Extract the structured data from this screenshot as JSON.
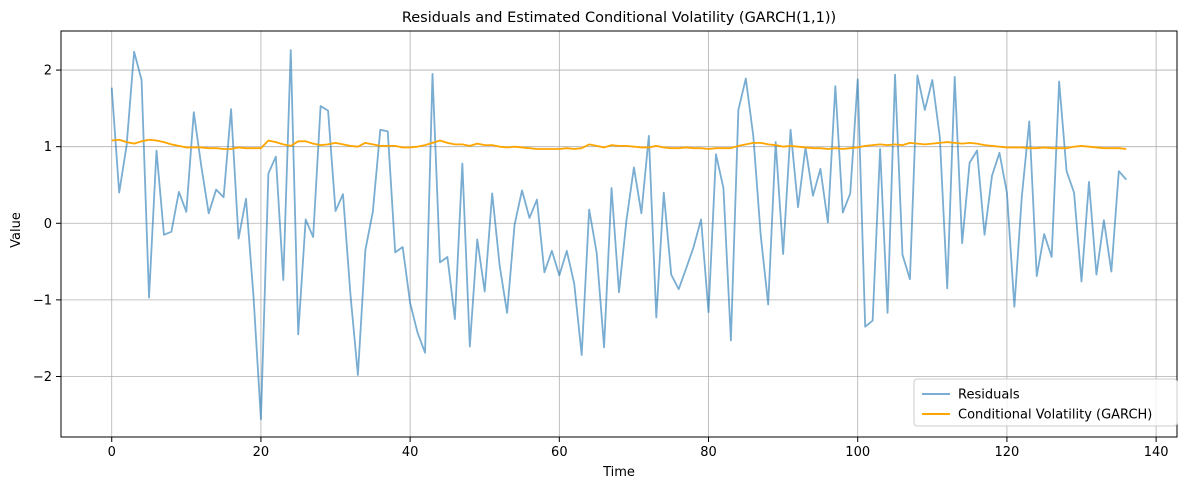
{
  "chart_data": {
    "type": "line",
    "title": "Residuals and Estimated Conditional Volatility (GARCH(1,1))",
    "xlabel": "Time",
    "ylabel": "Value",
    "xlim": [
      -6.8,
      142.8
    ],
    "ylim": [
      -2.79,
      2.51
    ],
    "xticks": [
      0,
      20,
      40,
      60,
      80,
      100,
      120,
      140
    ],
    "yticks": [
      -2,
      -1,
      0,
      1,
      2
    ],
    "xtick_labels": [
      "0",
      "20",
      "40",
      "60",
      "80",
      "100",
      "120",
      "140"
    ],
    "ytick_labels": [
      "−2",
      "−1",
      "0",
      "1",
      "2"
    ],
    "grid": true,
    "legend_position": "lower-right",
    "series": [
      {
        "name": "Residuals",
        "color": "#1f77b4",
        "opacity": 0.6,
        "x": [
          0,
          1,
          2,
          3,
          4,
          5,
          6,
          7,
          8,
          9,
          10,
          11,
          12,
          13,
          14,
          15,
          16,
          17,
          18,
          19,
          20,
          21,
          22,
          23,
          24,
          25,
          26,
          27,
          28,
          29,
          30,
          31,
          32,
          33,
          34,
          35,
          36,
          37,
          38,
          39,
          40,
          41,
          42,
          43,
          44,
          45,
          46,
          47,
          48,
          49,
          50,
          51,
          52,
          53,
          54,
          55,
          56,
          57,
          58,
          59,
          60,
          61,
          62,
          63,
          64,
          65,
          66,
          67,
          68,
          69,
          70,
          71,
          72,
          73,
          74,
          75,
          76,
          77,
          78,
          79,
          80,
          81,
          82,
          83,
          84,
          85,
          86,
          87,
          88,
          89,
          90,
          91,
          92,
          93,
          94,
          95,
          96,
          97,
          98,
          99,
          100,
          101,
          102,
          103,
          104,
          105,
          106,
          107,
          108,
          109,
          110,
          111,
          112,
          113,
          114,
          115,
          116,
          117,
          118,
          119,
          120,
          121,
          122,
          123,
          124,
          125,
          126,
          127,
          128,
          129,
          130,
          131,
          132,
          133,
          134,
          135,
          136
        ],
        "values": [
          1.77,
          0.4,
          1.02,
          2.24,
          1.87,
          -0.97,
          0.95,
          -0.15,
          -0.11,
          0.41,
          0.15,
          1.45,
          0.75,
          0.13,
          0.44,
          0.34,
          1.49,
          -0.2,
          0.32,
          -0.95,
          -2.56,
          0.65,
          0.87,
          -0.74,
          2.26,
          -1.45,
          0.05,
          -0.18,
          1.53,
          1.47,
          0.16,
          0.38,
          -0.93,
          -1.98,
          -0.35,
          0.15,
          1.22,
          1.2,
          -0.38,
          -0.31,
          -1.04,
          -1.43,
          -1.69,
          1.95,
          -0.51,
          -0.44,
          -1.25,
          0.78,
          -1.61,
          -0.21,
          -0.89,
          0.39,
          -0.55,
          -1.17,
          -0.02,
          0.43,
          0.07,
          0.31,
          -0.64,
          -0.36,
          -0.68,
          -0.36,
          -0.79,
          -1.72,
          0.18,
          -0.38,
          -1.62,
          0.46,
          -0.9,
          0.04,
          0.73,
          0.13,
          1.14,
          -1.23,
          0.4,
          -0.67,
          -0.86,
          -0.59,
          -0.31,
          0.05,
          -1.16,
          0.9,
          0.46,
          -1.53,
          1.48,
          1.89,
          1.14,
          -0.16,
          -1.06,
          1.06,
          -0.4,
          1.22,
          0.21,
          0.99,
          0.36,
          0.71,
          0.01,
          1.79,
          0.14,
          0.39,
          1.88,
          -1.35,
          -1.27,
          0.97,
          -1.17,
          1.94,
          -0.41,
          -0.73,
          1.93,
          1.48,
          1.87,
          1.13,
          -0.85,
          1.91,
          -0.26,
          0.79,
          0.95,
          -0.15,
          0.62,
          0.92,
          0.4,
          -1.09,
          0.35,
          1.33,
          -0.69,
          -0.14,
          -0.44,
          1.85,
          0.68,
          0.4,
          -0.76,
          0.54,
          -0.67,
          0.04,
          -0.63,
          0.68,
          0.57
        ]
      },
      {
        "name": "Conditional Volatility (GARCH)",
        "color": "#ffa500",
        "opacity": 1,
        "x": [
          0,
          1,
          2,
          3,
          4,
          5,
          6,
          7,
          8,
          9,
          10,
          11,
          12,
          13,
          14,
          15,
          16,
          17,
          18,
          19,
          20,
          21,
          22,
          23,
          24,
          25,
          26,
          27,
          28,
          29,
          30,
          31,
          32,
          33,
          34,
          35,
          36,
          37,
          38,
          39,
          40,
          41,
          42,
          43,
          44,
          45,
          46,
          47,
          48,
          49,
          50,
          51,
          52,
          53,
          54,
          55,
          56,
          57,
          58,
          59,
          60,
          61,
          62,
          63,
          64,
          65,
          66,
          67,
          68,
          69,
          70,
          71,
          72,
          73,
          74,
          75,
          76,
          77,
          78,
          79,
          80,
          81,
          82,
          83,
          84,
          85,
          86,
          87,
          88,
          89,
          90,
          91,
          92,
          93,
          94,
          95,
          96,
          97,
          98,
          99,
          100,
          101,
          102,
          103,
          104,
          105,
          106,
          107,
          108,
          109,
          110,
          111,
          112,
          113,
          114,
          115,
          116,
          117,
          118,
          119,
          120,
          121,
          122,
          123,
          124,
          125,
          126,
          127,
          128,
          129,
          130,
          131,
          132,
          133,
          134,
          135,
          136
        ],
        "values": [
          1.08,
          1.09,
          1.06,
          1.04,
          1.07,
          1.09,
          1.08,
          1.06,
          1.03,
          1.01,
          0.99,
          0.99,
          0.99,
          0.98,
          0.98,
          0.97,
          0.97,
          0.99,
          0.98,
          0.98,
          0.98,
          1.08,
          1.06,
          1.03,
          1.01,
          1.07,
          1.07,
          1.04,
          1.02,
          1.03,
          1.05,
          1.03,
          1.01,
          1.0,
          1.05,
          1.03,
          1.01,
          1.01,
          1.01,
          0.99,
          0.99,
          1.0,
          1.02,
          1.05,
          1.08,
          1.05,
          1.03,
          1.03,
          1.01,
          1.04,
          1.02,
          1.02,
          1.0,
          0.99,
          1.0,
          0.99,
          0.98,
          0.97,
          0.97,
          0.97,
          0.97,
          0.98,
          0.97,
          0.98,
          1.03,
          1.01,
          0.99,
          1.02,
          1.01,
          1.01,
          1.0,
          0.99,
          0.99,
          1.01,
          0.99,
          0.98,
          0.98,
          0.99,
          0.98,
          0.98,
          0.97,
          0.98,
          0.98,
          0.98,
          1.01,
          1.03,
          1.05,
          1.05,
          1.03,
          1.02,
          1.0,
          1.01,
          1.0,
          0.99,
          0.98,
          0.98,
          0.97,
          0.98,
          0.97,
          0.98,
          0.99,
          1.01,
          1.02,
          1.03,
          1.02,
          1.03,
          1.02,
          1.05,
          1.04,
          1.03,
          1.04,
          1.05,
          1.06,
          1.05,
          1.04,
          1.05,
          1.04,
          1.02,
          1.01,
          1.0,
          0.99,
          0.99,
          0.99,
          0.98,
          0.98,
          0.99,
          0.98,
          0.98,
          0.98,
          1.0,
          1.01,
          1.0,
          0.99,
          0.98,
          0.98,
          0.98,
          0.97
        ]
      }
    ]
  }
}
